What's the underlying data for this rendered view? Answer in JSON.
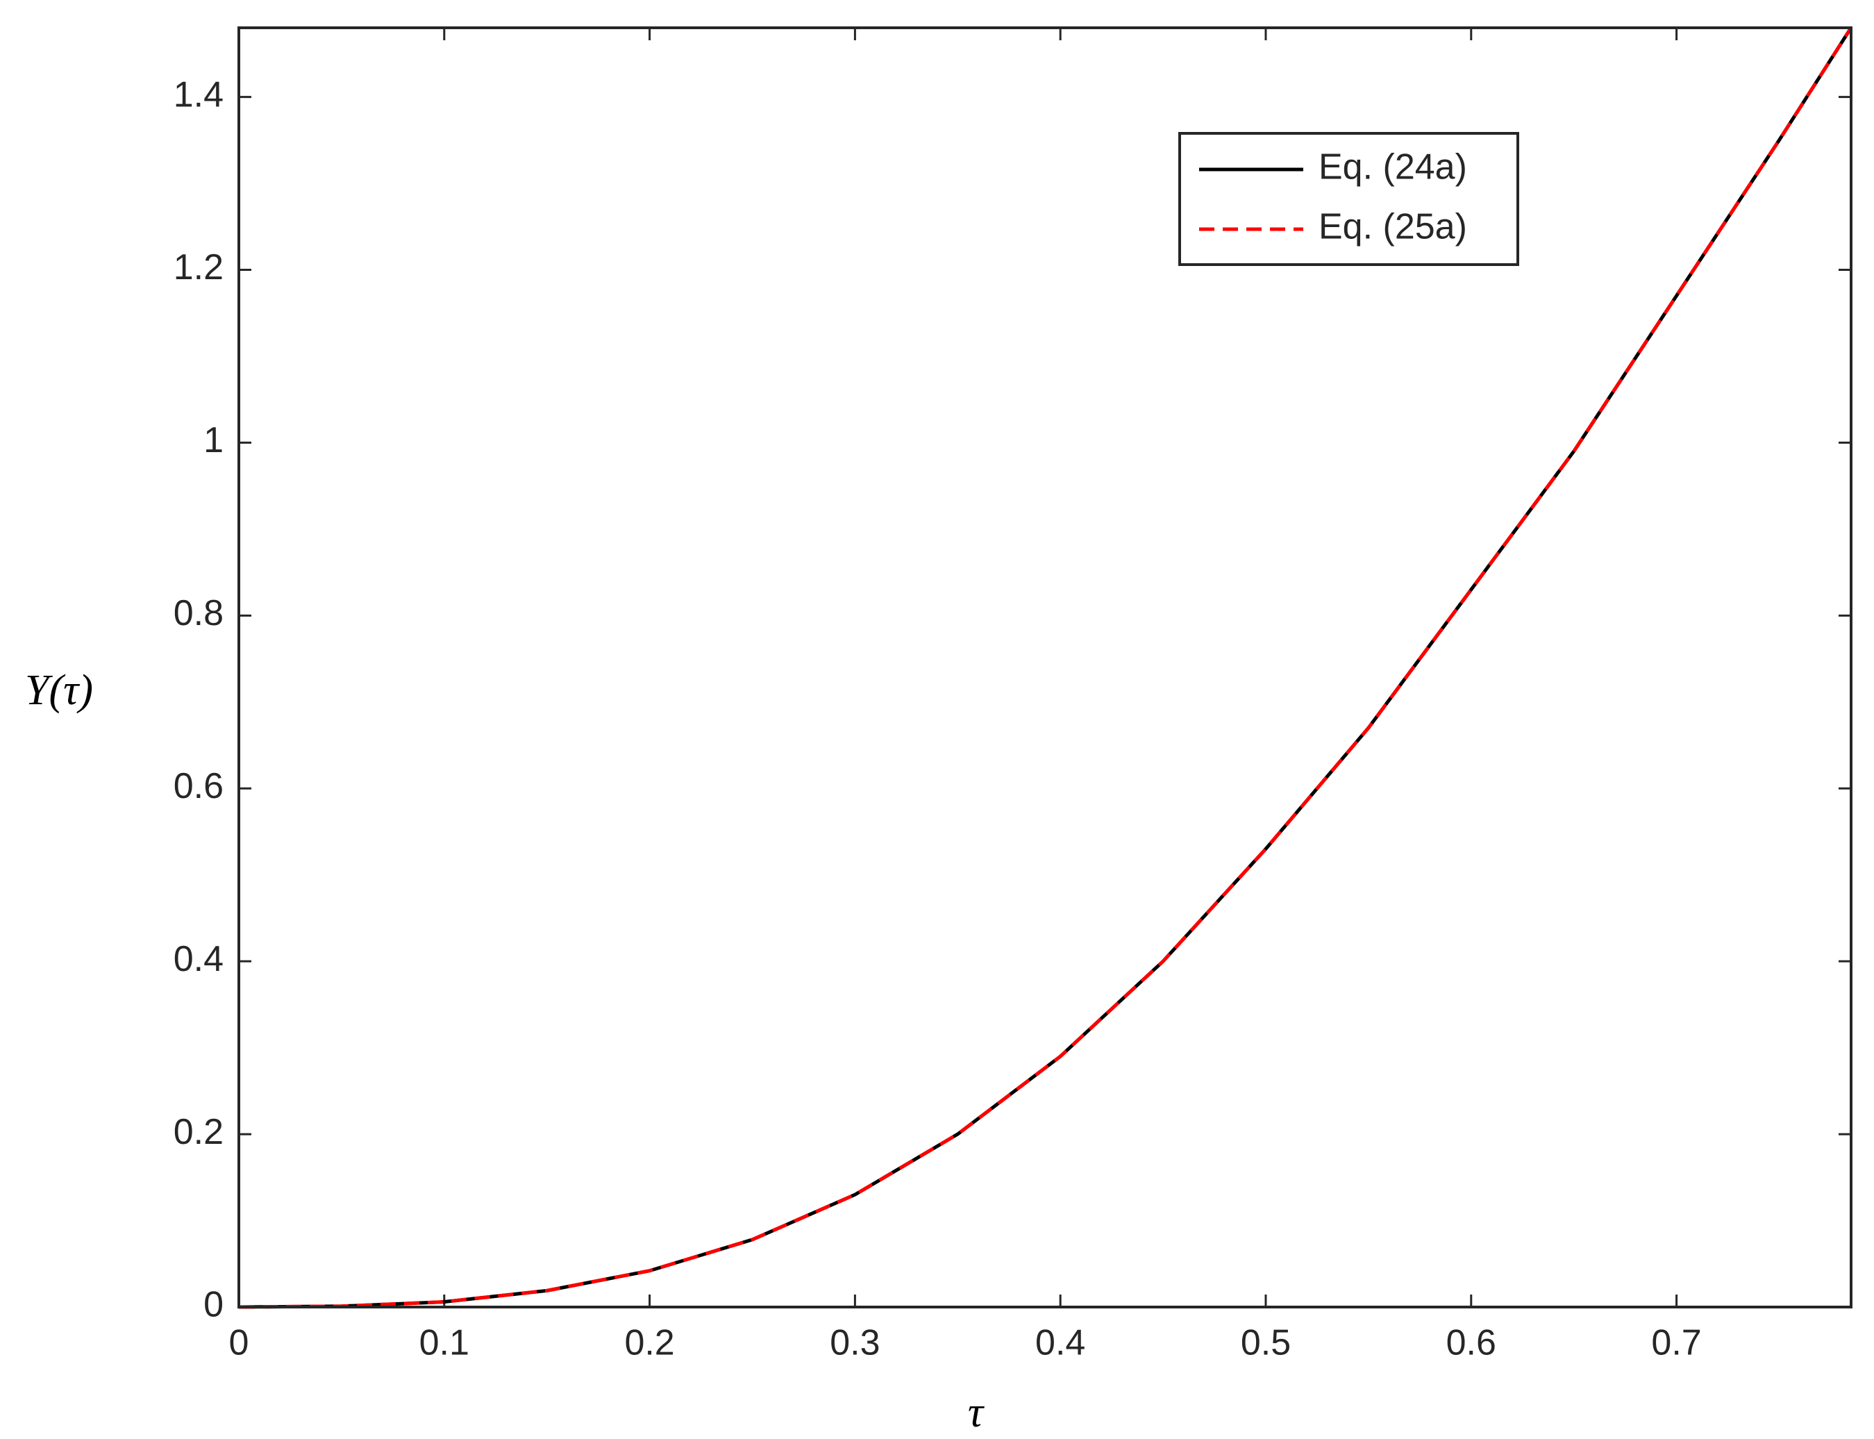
{
  "chart_data": {
    "type": "line",
    "x_label": "τ",
    "y_label": "Y(τ)",
    "x": [
      0,
      0.05,
      0.1,
      0.15,
      0.2,
      0.25,
      0.3,
      0.35,
      0.4,
      0.45,
      0.5,
      0.55,
      0.6,
      0.65,
      0.7,
      0.75,
      0.785
    ],
    "series": [
      {
        "name": "Eq. (24a)",
        "color": "#000000",
        "dash": "solid",
        "values": [
          0,
          0.001,
          0.006,
          0.019,
          0.042,
          0.078,
          0.13,
          0.2,
          0.29,
          0.4,
          0.53,
          0.67,
          0.83,
          0.99,
          1.17,
          1.35,
          1.48
        ]
      },
      {
        "name": "Eq. (25a)",
        "color": "#ff0000",
        "dash": "dashed",
        "values": [
          0,
          0.001,
          0.006,
          0.019,
          0.042,
          0.078,
          0.13,
          0.2,
          0.29,
          0.4,
          0.53,
          0.67,
          0.83,
          0.99,
          1.17,
          1.35,
          1.48
        ]
      }
    ],
    "xlim": [
      0,
      0.785
    ],
    "ylim": [
      0,
      1.48
    ],
    "xticks": [
      0,
      0.1,
      0.2,
      0.3,
      0.4,
      0.5,
      0.6,
      0.7
    ],
    "yticks": [
      0,
      0.2,
      0.4,
      0.6,
      0.8,
      1,
      1.2,
      1.4
    ],
    "grid": false
  }
}
